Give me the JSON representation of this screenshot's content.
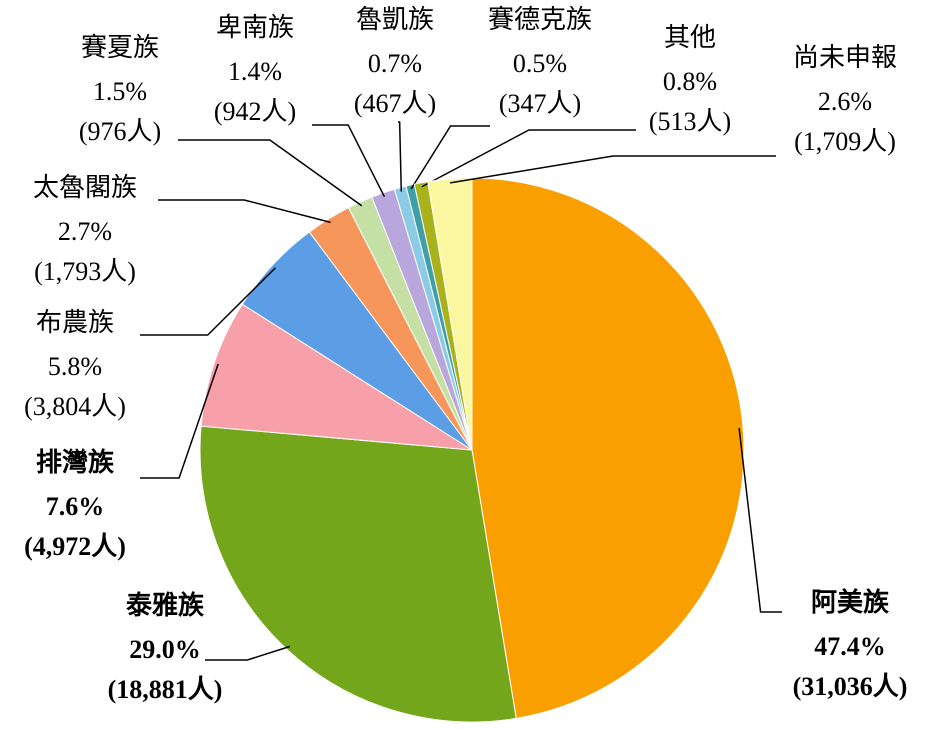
{
  "chart_data": {
    "type": "pie",
    "categories": [
      "阿美族",
      "泰雅族",
      "排灣族",
      "布農族",
      "太魯閣族",
      "賽夏族",
      "卑南族",
      "魯凱族",
      "賽德克族",
      "其他",
      "尚未申報"
    ],
    "values": [
      47.4,
      29.0,
      7.6,
      5.8,
      2.7,
      1.5,
      1.4,
      0.7,
      0.5,
      0.8,
      2.6
    ],
    "value_labels": [
      "47.4%",
      "29.0%",
      "7.6%",
      "5.8%",
      "2.7%",
      "1.5%",
      "1.4%",
      "0.7%",
      "0.5%",
      "0.8%",
      "2.6%"
    ],
    "count_labels": [
      "(31,036人)",
      "(18,881人)",
      "(4,972人)",
      "(3,804人)",
      "(1,793人)",
      "(976人)",
      "(942人)",
      "(467人)",
      "(347人)",
      "(513人)",
      "(1,709人)"
    ],
    "colors": [
      "#f9a000",
      "#74a61c",
      "#f7a0aa",
      "#5b9ee6",
      "#f7965a",
      "#c5e0a5",
      "#b9a6dc",
      "#8ccbe6",
      "#3f9fa8",
      "#a9b21a",
      "#fbf7a0"
    ],
    "label_colors": [
      "#f39800",
      "#6d9a1e",
      "#f06a93",
      "#000000",
      "#000000",
      "#000000",
      "#000000",
      "#000000",
      "#000000",
      "#000000",
      "#000000"
    ]
  }
}
